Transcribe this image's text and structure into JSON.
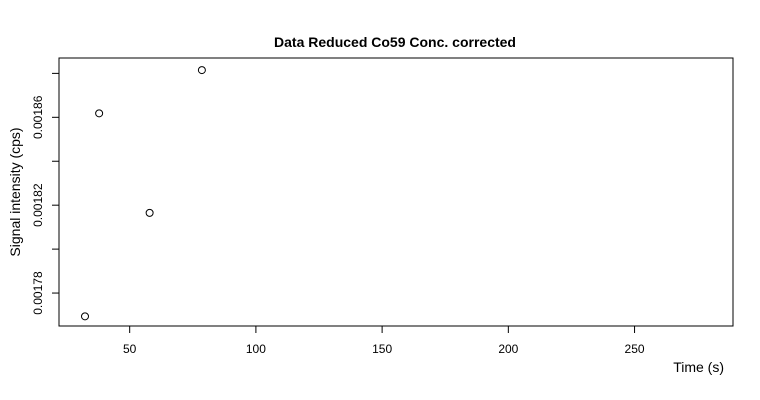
{
  "chart_data": {
    "type": "scatter",
    "title": "Data Reduced Co59 Conc. corrected",
    "xlabel": "Time (s)",
    "ylabel": "Signal intensity (cps)",
    "xlim": [
      22,
      289
    ],
    "ylim": [
      0.001765,
      0.001887
    ],
    "x_ticks": [
      50,
      100,
      150,
      200,
      250
    ],
    "x_tick_labels": [
      "50",
      "100",
      "150",
      "200",
      "250"
    ],
    "y_ticks": [
      0.00178,
      0.0018,
      0.00182,
      0.00184,
      0.00186,
      0.00188
    ],
    "y_tick_labels": [
      "0.00178",
      "",
      "0.00182",
      "",
      "0.00186",
      ""
    ],
    "points": [
      {
        "x": 32.3,
        "y": 0.0017694
      },
      {
        "x": 37.9,
        "y": 0.0018618
      },
      {
        "x": 57.9,
        "y": 0.0018165
      },
      {
        "x": 78.6,
        "y": 0.0018815
      }
    ],
    "grid": false,
    "legend": "none"
  }
}
